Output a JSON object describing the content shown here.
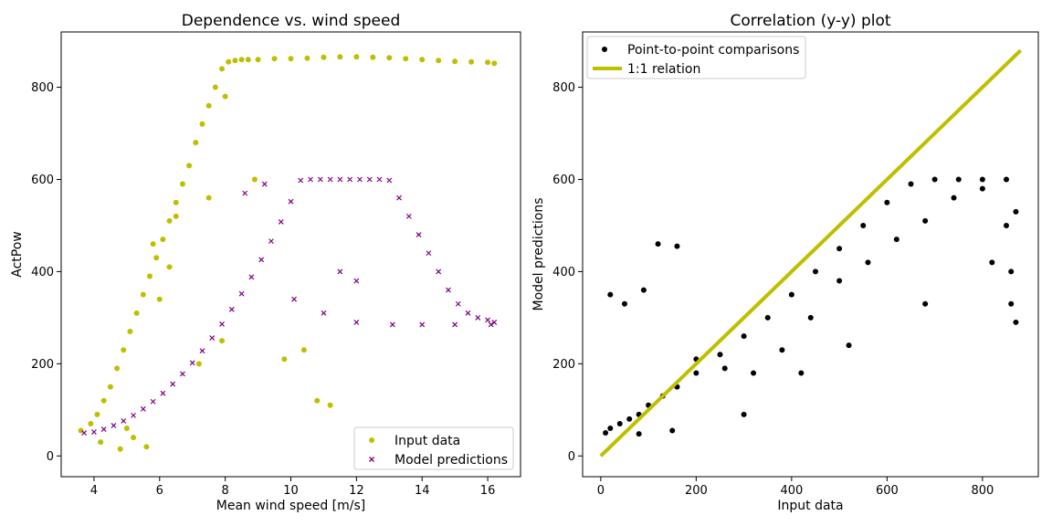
{
  "chart_data": [
    {
      "type": "scatter",
      "title": "Dependence vs. wind speed",
      "xlabel": "Mean wind speed [m/s]",
      "ylabel": "ActPow",
      "xlim": [
        3.0,
        17.0
      ],
      "ylim": [
        -45,
        920
      ],
      "xticks": [
        4,
        6,
        8,
        10,
        12,
        14,
        16
      ],
      "yticks": [
        0,
        200,
        400,
        600,
        800
      ],
      "legend_position": "lower-right",
      "series": [
        {
          "name": "Input data",
          "marker": "circle",
          "color": "#bfbf00",
          "x": [
            3.6,
            3.9,
            4.1,
            4.3,
            4.5,
            4.7,
            4.9,
            5.1,
            5.3,
            5.5,
            5.7,
            5.9,
            6.1,
            6.3,
            6.5,
            6.7,
            6.9,
            7.1,
            7.3,
            7.5,
            7.7,
            7.9,
            8.1,
            8.3,
            8.5,
            8.7,
            9.0,
            9.5,
            10.0,
            10.5,
            11.0,
            11.5,
            12.0,
            12.5,
            13.0,
            13.5,
            14.0,
            14.5,
            15.0,
            15.5,
            16.0,
            16.2,
            4.2,
            4.8,
            5.2,
            5.0,
            5.6,
            6.0,
            7.5,
            8.0,
            8.9,
            10.8,
            11.2,
            7.2,
            7.9,
            9.8,
            10.4,
            5.8,
            6.3,
            6.5
          ],
          "y": [
            55,
            70,
            90,
            120,
            150,
            190,
            230,
            270,
            310,
            350,
            390,
            430,
            470,
            510,
            550,
            590,
            630,
            680,
            720,
            760,
            800,
            840,
            855,
            858,
            860,
            860,
            860,
            862,
            862,
            863,
            865,
            866,
            866,
            865,
            864,
            862,
            860,
            858,
            856,
            855,
            854,
            852,
            30,
            15,
            40,
            60,
            20,
            340,
            560,
            780,
            600,
            120,
            110,
            200,
            250,
            210,
            230,
            460,
            410,
            520
          ]
        },
        {
          "name": "Model predictions",
          "marker": "x",
          "color": "#800080",
          "x": [
            3.7,
            4.0,
            4.3,
            4.6,
            4.9,
            5.2,
            5.5,
            5.8,
            6.1,
            6.4,
            6.7,
            7.0,
            7.3,
            7.6,
            7.9,
            8.2,
            8.5,
            8.8,
            9.1,
            9.4,
            9.7,
            10.0,
            10.3,
            10.6,
            10.9,
            11.2,
            11.5,
            11.8,
            12.1,
            12.4,
            12.7,
            13.0,
            13.3,
            13.6,
            13.9,
            14.2,
            14.5,
            14.8,
            15.1,
            15.4,
            15.7,
            16.0,
            16.2,
            8.6,
            9.2,
            10.1,
            11.0,
            12.0,
            13.1,
            14.0,
            15.0,
            16.1,
            11.5,
            12.0
          ],
          "y": [
            50,
            52,
            58,
            66,
            76,
            88,
            102,
            118,
            136,
            156,
            178,
            202,
            228,
            256,
            286,
            318,
            352,
            388,
            426,
            466,
            508,
            552,
            598,
            600,
            600,
            600,
            600,
            600,
            600,
            600,
            600,
            598,
            560,
            520,
            480,
            440,
            400,
            360,
            330,
            310,
            300,
            295,
            290,
            570,
            590,
            340,
            310,
            290,
            285,
            285,
            285,
            285,
            400,
            380
          ]
        }
      ]
    },
    {
      "type": "scatter",
      "title": "Correlation (y-y) plot",
      "xlabel": "Input data",
      "ylabel": "Model predictions",
      "xlim": [
        -38,
        917
      ],
      "ylim": [
        -45,
        920
      ],
      "xticks": [
        0,
        200,
        400,
        600,
        800
      ],
      "yticks": [
        0,
        200,
        400,
        600,
        800
      ],
      "legend_position": "upper-left",
      "series": [
        {
          "name": "Point-to-point comparisons",
          "marker": "circle",
          "color": "#000000",
          "x": [
            10,
            20,
            40,
            60,
            80,
            100,
            130,
            160,
            200,
            250,
            300,
            350,
            400,
            450,
            500,
            550,
            600,
            650,
            700,
            750,
            800,
            850,
            860,
            870,
            20,
            50,
            90,
            120,
            160,
            200,
            260,
            320,
            380,
            440,
            500,
            560,
            620,
            680,
            740,
            800,
            850,
            860,
            80,
            150,
            300,
            420,
            520,
            680,
            820,
            870
          ],
          "y": [
            50,
            60,
            70,
            80,
            90,
            110,
            130,
            150,
            180,
            220,
            260,
            300,
            350,
            400,
            450,
            500,
            550,
            590,
            600,
            600,
            600,
            600,
            400,
            290,
            350,
            330,
            360,
            460,
            455,
            210,
            190,
            180,
            230,
            300,
            380,
            420,
            470,
            510,
            560,
            580,
            500,
            330,
            48,
            55,
            90,
            180,
            240,
            330,
            420,
            530
          ]
        },
        {
          "name": "1:1 relation",
          "marker": "line",
          "color": "#bfbf00",
          "x": [
            0,
            880
          ],
          "y": [
            0,
            880
          ]
        }
      ]
    }
  ]
}
